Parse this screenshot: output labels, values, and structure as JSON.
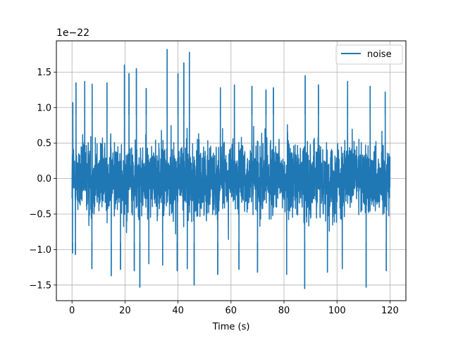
{
  "chart_data": {
    "type": "line",
    "title": "",
    "xlabel": "Time (s)",
    "ylabel": "",
    "y_offset_label": "1e−22",
    "xlim": [
      -5.9,
      126.0
    ],
    "ylim": [
      -1.72,
      1.94
    ],
    "x_ticks": [
      0,
      20,
      40,
      60,
      80,
      100,
      120
    ],
    "x_tick_labels": [
      "0",
      "20",
      "40",
      "60",
      "80",
      "100",
      "120"
    ],
    "y_ticks": [
      -1.5,
      -1.0,
      -0.5,
      0.0,
      0.5,
      1.0,
      1.5
    ],
    "y_tick_labels": [
      "−1.5",
      "−1.0",
      "−0.5",
      "0.0",
      "0.5",
      "1.0",
      "1.5"
    ],
    "grid": true,
    "legend_position": "top-right",
    "series": [
      {
        "name": "noise",
        "color": "#1f77b4",
        "x_range": [
          0,
          120
        ],
        "y_range": [
          -1.55,
          1.82
        ],
        "typical_envelope": [
          -1.05,
          1.05
        ],
        "peaks": [
          {
            "x": 0.3,
            "y": 1.07
          },
          {
            "x": 1.5,
            "y": 1.35
          },
          {
            "x": 4.8,
            "y": 1.37
          },
          {
            "x": 7.6,
            "y": 1.33
          },
          {
            "x": 13.2,
            "y": 1.35
          },
          {
            "x": 19.8,
            "y": 1.6
          },
          {
            "x": 21.5,
            "y": 1.48
          },
          {
            "x": 24.3,
            "y": 1.55
          },
          {
            "x": 28.0,
            "y": 1.27
          },
          {
            "x": 35.9,
            "y": 1.82
          },
          {
            "x": 40.0,
            "y": 1.48
          },
          {
            "x": 42.2,
            "y": 1.63
          },
          {
            "x": 44.3,
            "y": 1.78
          },
          {
            "x": 56.0,
            "y": 1.28
          },
          {
            "x": 61.3,
            "y": 1.32
          },
          {
            "x": 67.9,
            "y": 1.3
          },
          {
            "x": 73.2,
            "y": 1.25
          },
          {
            "x": 76.0,
            "y": 1.28
          },
          {
            "x": 88.0,
            "y": 1.45
          },
          {
            "x": 93.0,
            "y": 1.32
          },
          {
            "x": 104.0,
            "y": 1.37
          },
          {
            "x": 112.5,
            "y": 1.3
          },
          {
            "x": 118.2,
            "y": 1.22
          }
        ],
        "troughs": [
          {
            "x": 0.2,
            "y": -1.05
          },
          {
            "x": 1.3,
            "y": -1.07
          },
          {
            "x": 7.5,
            "y": -1.27
          },
          {
            "x": 14.8,
            "y": -1.37
          },
          {
            "x": 18.3,
            "y": -1.28
          },
          {
            "x": 23.5,
            "y": -1.3
          },
          {
            "x": 25.6,
            "y": -1.53
          },
          {
            "x": 29.0,
            "y": -1.2
          },
          {
            "x": 34.2,
            "y": -1.22
          },
          {
            "x": 39.7,
            "y": -1.3
          },
          {
            "x": 43.5,
            "y": -1.27
          },
          {
            "x": 46.1,
            "y": -1.5
          },
          {
            "x": 55.0,
            "y": -1.35
          },
          {
            "x": 63.0,
            "y": -1.28
          },
          {
            "x": 70.0,
            "y": -1.32
          },
          {
            "x": 81.0,
            "y": -1.35
          },
          {
            "x": 87.8,
            "y": -1.55
          },
          {
            "x": 96.4,
            "y": -1.32
          },
          {
            "x": 102.0,
            "y": -1.27
          },
          {
            "x": 111.0,
            "y": -1.53
          },
          {
            "x": 118.6,
            "y": -1.3
          }
        ]
      }
    ]
  }
}
